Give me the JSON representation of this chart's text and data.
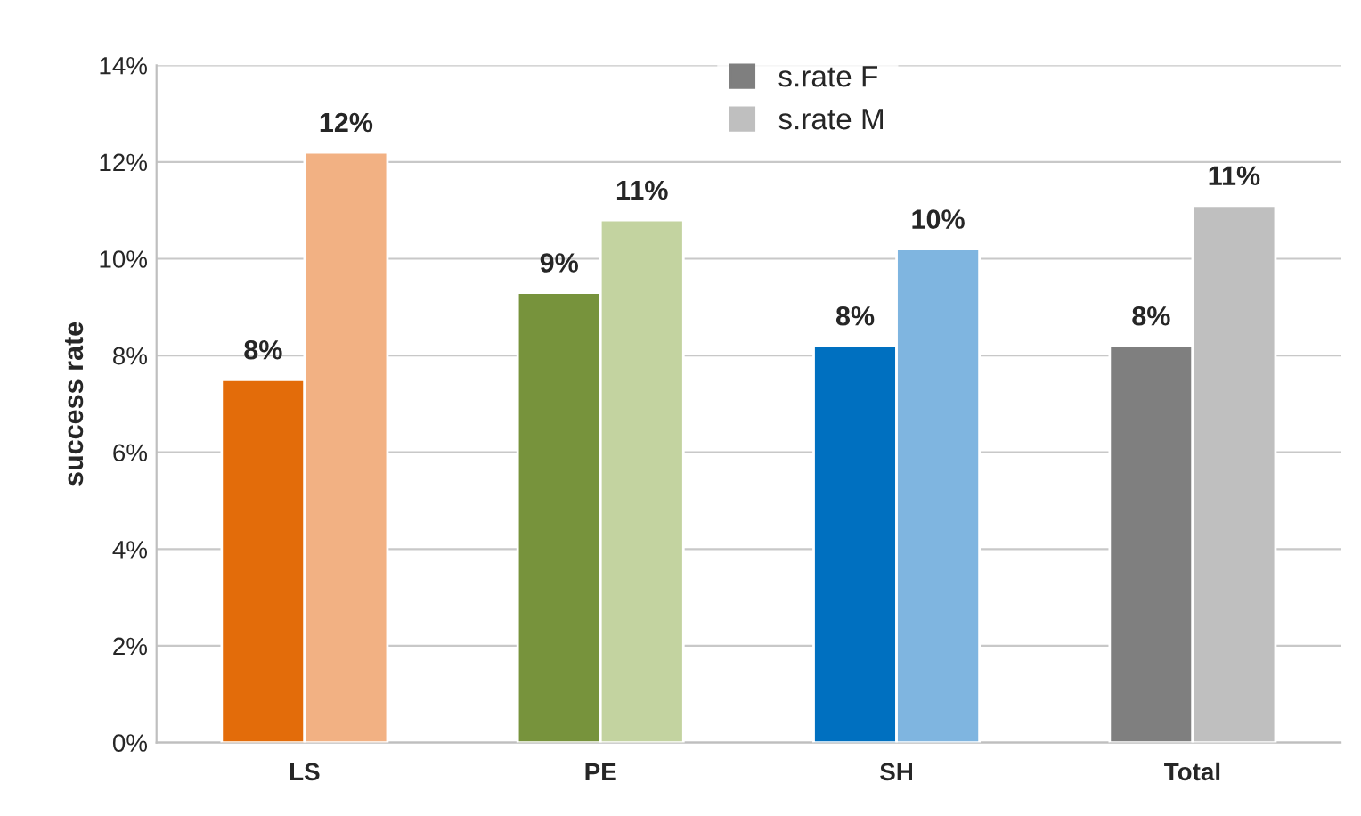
{
  "chart_data": {
    "type": "bar",
    "ylabel": "success rate",
    "categories": [
      "LS",
      "PE",
      "SH",
      "Total"
    ],
    "series": [
      {
        "name": "s.rate F",
        "color": "#7f7f7f",
        "colors": [
          "#e36c0a",
          "#77933c",
          "#0070c0",
          "#7f7f7f"
        ],
        "values": [
          7.5,
          9.3,
          8.2,
          8.2
        ],
        "value_labels": [
          "8%",
          "9%",
          "8%",
          "8%"
        ]
      },
      {
        "name": "s.rate M",
        "color": "#bfbfbf",
        "colors": [
          "#f2b183",
          "#c3d3a0",
          "#7fb5e0",
          "#bfbfbf"
        ],
        "values": [
          12.2,
          10.8,
          10.2,
          11.1
        ],
        "value_labels": [
          "12%",
          "11%",
          "10%",
          "11%"
        ]
      }
    ],
    "ylim": [
      0,
      14
    ],
    "yticks": [
      {
        "value": 0,
        "label": "0%"
      },
      {
        "value": 2,
        "label": "2%"
      },
      {
        "value": 4,
        "label": "4%"
      },
      {
        "value": 6,
        "label": "6%"
      },
      {
        "value": 8,
        "label": "8%"
      },
      {
        "value": 10,
        "label": "10%"
      },
      {
        "value": 12,
        "label": "12%"
      },
      {
        "value": 14,
        "label": "14%"
      }
    ],
    "grid": "y",
    "legend": "top"
  }
}
